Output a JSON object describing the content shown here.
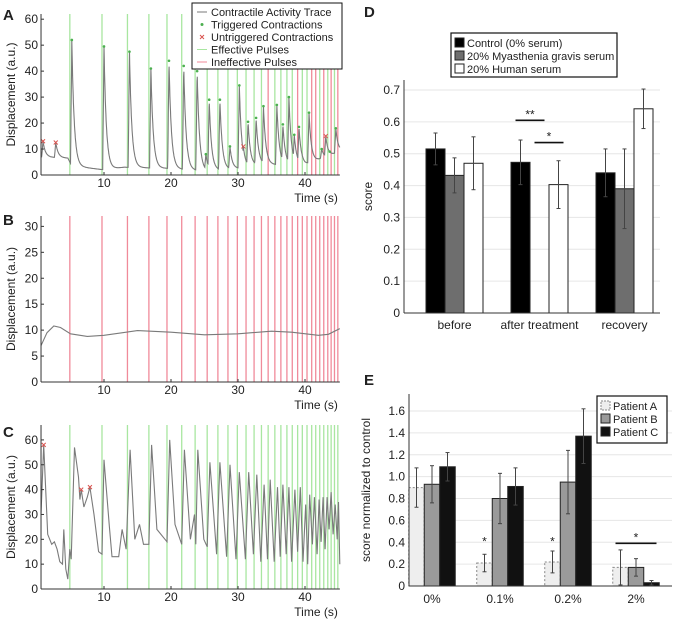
{
  "chart_data": [
    {
      "panel": "A",
      "type": "line",
      "xlabel": "Time (s)",
      "ylabel": "Displacement (a.u.)",
      "xlim": [
        0.6,
        45.2
      ],
      "ylim": [
        0,
        62
      ],
      "xticks": [
        10,
        20,
        30,
        40
      ],
      "yticks": [
        0,
        10,
        20,
        30,
        40,
        50,
        60
      ],
      "legend": {
        "placement": "top-right",
        "entries": [
          "Contractile Activity Trace",
          "Triggered Contractions",
          "Untriggered Contractions",
          "Effective Pulses",
          "Ineffective Pulses"
        ]
      },
      "baseline": [
        [
          0.6,
          7
        ],
        [
          4.6,
          6.5
        ],
        [
          5.2,
          3.5
        ],
        [
          10,
          2
        ],
        [
          13,
          3
        ],
        [
          20,
          2.5
        ],
        [
          25,
          1.5
        ],
        [
          30,
          2.5
        ],
        [
          33,
          4
        ],
        [
          40,
          4
        ],
        [
          45.2,
          9
        ]
      ],
      "effective_pulses": [
        4.9,
        9.7,
        13.5,
        16.7,
        19.4,
        21.6,
        23.6,
        25.4,
        27.0,
        28.5,
        29.9,
        31.2,
        32.4,
        33.5,
        35.5,
        36.4,
        37.3,
        38.1,
        39.6,
        40.3,
        42.2,
        43.4,
        44.4
      ],
      "ineffective_pulses": [
        34.5,
        38.9,
        41.0,
        41.6,
        42.8,
        43.9,
        44.9
      ],
      "triggered_contractions": [
        [
          5.2,
          52
        ],
        [
          10.0,
          49.5
        ],
        [
          13.8,
          47.5
        ],
        [
          17.0,
          41
        ],
        [
          19.7,
          44
        ],
        [
          21.9,
          42
        ],
        [
          23.9,
          40
        ],
        [
          25.2,
          8
        ],
        [
          25.7,
          29
        ],
        [
          27.3,
          29
        ],
        [
          28.8,
          11
        ],
        [
          30.2,
          34.5
        ],
        [
          31.5,
          20.5
        ],
        [
          32.7,
          22
        ],
        [
          33.8,
          26.5
        ],
        [
          35.8,
          27
        ],
        [
          36.7,
          19.5
        ],
        [
          37.6,
          30
        ],
        [
          38.4,
          15.5
        ],
        [
          39.1,
          18.5
        ],
        [
          40.6,
          24
        ],
        [
          42.5,
          10
        ],
        [
          43.7,
          9
        ],
        [
          44.6,
          18
        ]
      ],
      "untriggered_contractions": [
        [
          0.9,
          13
        ],
        [
          2.8,
          12.5
        ],
        [
          30.8,
          11
        ],
        [
          43.1,
          15
        ]
      ],
      "colors": {
        "trace": "#7a7a7a",
        "triggered": "#4caf50",
        "untriggered": "#d9534f",
        "effective": "#a8e6a0",
        "ineffective": "#f08a9a"
      }
    },
    {
      "panel": "B",
      "type": "line",
      "xlabel": "Time (s)",
      "ylabel": "Displacement (a.u.)",
      "xlim": [
        0.6,
        45.2
      ],
      "ylim": [
        0,
        32
      ],
      "xticks": [
        10,
        20,
        30,
        40
      ],
      "yticks": [
        0,
        5,
        10,
        15,
        20,
        25,
        30
      ],
      "trace": [
        [
          0.6,
          7
        ],
        [
          1.5,
          9.5
        ],
        [
          2.5,
          10.8
        ],
        [
          3.5,
          10.5
        ],
        [
          5,
          9.3
        ],
        [
          7.5,
          8.8
        ],
        [
          10,
          9.0
        ],
        [
          15,
          9.9
        ],
        [
          20,
          9.6
        ],
        [
          25,
          9.1
        ],
        [
          30,
          9.3
        ],
        [
          35,
          9.8
        ],
        [
          38,
          9.6
        ],
        [
          42,
          9.0
        ],
        [
          43.5,
          9.2
        ],
        [
          45.2,
          10.3
        ]
      ],
      "effective_pulses": [],
      "ineffective_pulses": [
        4.9,
        9.7,
        13.5,
        16.7,
        19.4,
        21.6,
        23.6,
        25.4,
        27.0,
        28.5,
        29.9,
        31.2,
        32.4,
        33.5,
        34.5,
        35.5,
        36.4,
        37.3,
        38.1,
        38.9,
        39.6,
        40.3,
        41.0,
        41.6,
        42.2,
        42.8,
        43.4,
        43.9,
        44.4,
        44.9
      ],
      "colors": {
        "trace": "#7a7a7a",
        "ineffective": "#f08a9a"
      }
    },
    {
      "panel": "C",
      "type": "line",
      "xlabel": "Time (s)",
      "ylabel": "Displacement (a.u.)",
      "xlim": [
        0.6,
        45.2
      ],
      "ylim": [
        0,
        66
      ],
      "xticks": [
        10,
        20,
        30,
        40
      ],
      "yticks": [
        0,
        10,
        20,
        30,
        40,
        50,
        60
      ],
      "trace": [
        [
          0.6,
          30
        ],
        [
          1.0,
          58
        ],
        [
          1.6,
          22
        ],
        [
          2.2,
          18
        ],
        [
          2.6,
          19
        ],
        [
          3.0,
          16
        ],
        [
          3.4,
          11
        ],
        [
          3.8,
          10
        ],
        [
          4.0,
          24
        ],
        [
          4.3,
          8
        ],
        [
          4.6,
          4
        ],
        [
          4.9,
          16
        ],
        [
          5.1,
          12
        ],
        [
          5.6,
          57
        ],
        [
          6.2,
          45
        ],
        [
          6.4,
          36
        ],
        [
          6.6,
          40
        ],
        [
          7.0,
          33
        ],
        [
          7.5,
          37
        ],
        [
          7.9,
          41
        ],
        [
          8.5,
          30
        ],
        [
          9.2,
          15
        ],
        [
          9.7,
          14
        ],
        [
          10.0,
          52
        ],
        [
          10.8,
          25
        ],
        [
          11.2,
          13
        ],
        [
          12.2,
          13
        ],
        [
          12.7,
          24
        ],
        [
          13.3,
          16
        ],
        [
          13.9,
          56
        ],
        [
          14.6,
          20
        ],
        [
          15.3,
          26
        ],
        [
          15.9,
          18
        ],
        [
          16.7,
          18
        ],
        [
          17.1,
          58
        ],
        [
          17.9,
          24
        ],
        [
          19.4,
          19
        ],
        [
          19.8,
          60
        ],
        [
          20.6,
          26
        ],
        [
          21.6,
          18
        ],
        [
          22.0,
          56
        ],
        [
          22.9,
          20
        ],
        [
          23.5,
          30
        ],
        [
          23.7,
          18
        ],
        [
          24.0,
          56
        ],
        [
          24.9,
          20
        ],
        [
          25.4,
          17
        ],
        [
          25.8,
          51
        ],
        [
          26.8,
          14
        ],
        [
          27.3,
          51
        ],
        [
          28.3,
          13
        ],
        [
          28.8,
          50
        ],
        [
          29.7,
          12
        ],
        [
          30.2,
          47
        ],
        [
          31.1,
          12
        ],
        [
          31.6,
          47
        ],
        [
          32.3,
          14
        ],
        [
          32.8,
          46
        ],
        [
          33.4,
          11
        ],
        [
          33.9,
          42
        ],
        [
          34.4,
          12
        ],
        [
          34.8,
          44
        ],
        [
          35.4,
          11
        ],
        [
          35.9,
          41
        ],
        [
          36.3,
          13
        ],
        [
          36.7,
          42
        ],
        [
          37.2,
          14
        ],
        [
          37.6,
          41
        ],
        [
          38.0,
          11
        ],
        [
          38.5,
          40
        ],
        [
          38.9,
          15
        ],
        [
          39.3,
          41
        ],
        [
          39.7,
          11
        ],
        [
          40.1,
          34
        ],
        [
          40.4,
          10
        ],
        [
          40.7,
          38
        ],
        [
          41.1,
          18
        ],
        [
          41.4,
          37
        ],
        [
          41.8,
          14
        ],
        [
          42.1,
          36
        ],
        [
          42.4,
          19
        ],
        [
          42.7,
          37
        ],
        [
          43.0,
          16
        ],
        [
          43.3,
          37
        ],
        [
          43.6,
          24
        ],
        [
          43.9,
          39
        ],
        [
          44.2,
          22
        ],
        [
          44.5,
          34
        ],
        [
          44.8,
          20
        ],
        [
          45.0,
          35
        ],
        [
          45.2,
          10
        ]
      ],
      "effective_pulses": [
        4.9,
        9.7,
        13.5,
        16.7,
        19.4,
        21.6,
        23.6,
        25.4,
        27.0,
        28.5,
        29.9,
        31.2,
        32.4,
        33.5,
        34.5,
        35.5,
        36.4,
        37.3,
        38.1,
        38.9,
        39.6,
        40.3,
        41.0,
        41.6,
        42.2,
        42.8,
        43.4,
        43.9,
        44.4,
        44.9
      ],
      "ineffective_pulses": [],
      "untriggered_contractions": [
        [
          1.0,
          58
        ],
        [
          6.6,
          40
        ],
        [
          7.9,
          41
        ]
      ],
      "colors": {
        "trace": "#7a7a7a",
        "effective": "#a8e6a0",
        "untriggered": "#d9534f"
      }
    },
    {
      "panel": "D",
      "type": "bar",
      "ylabel": "score",
      "xlabel": "",
      "ylim": [
        0,
        0.73
      ],
      "yticks": [
        0,
        0.1,
        0.2,
        0.3,
        0.4,
        0.5,
        0.6,
        0.7
      ],
      "categories": [
        "before",
        "after treatment",
        "recovery"
      ],
      "grid": true,
      "legend": {
        "placement": "top"
      },
      "series": [
        {
          "name": "Control (0% serum)",
          "color": "#000000",
          "values": [
            0.515,
            0.473,
            0.44
          ],
          "errors": [
            0.05,
            0.07,
            0.075
          ]
        },
        {
          "name": "20% Myasthenia gravis serum",
          "color": "#6e6e6e",
          "values": [
            0.432,
            null,
            0.39
          ],
          "errors": [
            0.055,
            null,
            0.125
          ]
        },
        {
          "name": "20% Human serum",
          "color": "#ffffff",
          "values": [
            0.47,
            0.403,
            0.641
          ],
          "errors": [
            0.083,
            0.075,
            0.062
          ]
        }
      ],
      "significance": [
        {
          "category": "after treatment",
          "from_series": 0,
          "to_series": 1,
          "y": 0.605,
          "label": "**"
        },
        {
          "category": "after treatment",
          "from_series": 1,
          "to_series": 2,
          "y": 0.535,
          "label": "*"
        }
      ]
    },
    {
      "panel": "E",
      "type": "bar",
      "ylabel": "score normalized to control",
      "xlabel": "",
      "ylim": [
        0,
        1.75
      ],
      "yticks": [
        "0",
        "0.2",
        "0.4",
        "0.6",
        "0.8",
        "1.0",
        "1.2",
        "1.4",
        "1.6"
      ],
      "categories": [
        "0%",
        "0.1%",
        "0.2%",
        "2%"
      ],
      "grid": true,
      "legend": {
        "placement": "top-right"
      },
      "series": [
        {
          "name": "Patient A",
          "color": "#eeeeee",
          "dashed": true,
          "values": [
            0.9,
            0.21,
            0.22,
            0.17
          ],
          "errors": [
            0.18,
            0.08,
            0.1,
            0.16
          ]
        },
        {
          "name": "Patient B",
          "color": "#9a9a9a",
          "values": [
            0.93,
            0.8,
            0.95,
            0.17
          ],
          "errors": [
            0.17,
            0.23,
            0.29,
            0.08
          ]
        },
        {
          "name": "Patient C",
          "color": "#111111",
          "values": [
            1.09,
            0.91,
            1.37,
            0.03
          ],
          "errors": [
            0.13,
            0.17,
            0.25,
            0.02
          ]
        }
      ],
      "significance": [
        {
          "category": "0.1%",
          "series": 0,
          "y": 0.4,
          "label": "*"
        },
        {
          "category": "0.2%",
          "series": 0,
          "y": 0.4,
          "label": "*"
        },
        {
          "category": "2%",
          "from_series": 0,
          "to_series": 2,
          "y": 0.39,
          "label": "*",
          "bar": true
        }
      ]
    }
  ]
}
